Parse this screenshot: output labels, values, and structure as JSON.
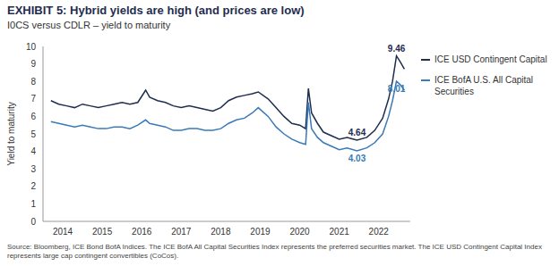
{
  "chart_data": {
    "type": "line",
    "title": "EXHIBIT 5: Hybrid yields are high (and prices are low)",
    "subtitle": "I0CS versus CDLR – yield to maturity",
    "y_label": "Yield to maturity",
    "source": "Source: Bloomberg, ICE Bond BofA Indices. The ICE BofA All Capital Securities Index represents the preferred securities market. The ICE USD Contingent Capital Index represents large cap contingent convertibles (CoCos).",
    "x": [
      2013.7,
      2013.9,
      2014.1,
      2014.3,
      2014.5,
      2014.7,
      2014.9,
      2015.1,
      2015.3,
      2015.5,
      2015.7,
      2015.9,
      2016.1,
      2016.2,
      2016.4,
      2016.6,
      2016.8,
      2017.0,
      2017.2,
      2017.4,
      2017.6,
      2017.8,
      2018.0,
      2018.2,
      2018.4,
      2018.6,
      2018.8,
      2018.95,
      2019.2,
      2019.4,
      2019.6,
      2019.8,
      2020.0,
      2020.15,
      2020.22,
      2020.3,
      2020.45,
      2020.6,
      2020.8,
      2021.0,
      2021.2,
      2021.45,
      2021.7,
      2021.9,
      2022.1,
      2022.25,
      2022.35,
      2022.45,
      2022.55,
      2022.65
    ],
    "series": [
      {
        "name": "ICE USD Contingent Capital",
        "color": "#1f2d4e",
        "values": [
          6.9,
          6.7,
          6.6,
          6.5,
          6.7,
          6.6,
          6.5,
          6.6,
          6.7,
          6.8,
          6.7,
          6.8,
          7.5,
          7.1,
          6.9,
          6.8,
          6.6,
          6.5,
          6.6,
          6.5,
          6.4,
          6.3,
          6.5,
          6.9,
          7.1,
          7.2,
          7.3,
          7.4,
          7.0,
          6.5,
          6.0,
          5.6,
          5.5,
          5.3,
          7.6,
          6.2,
          5.6,
          5.1,
          4.9,
          4.7,
          4.8,
          4.64,
          4.8,
          5.2,
          5.9,
          7.0,
          8.0,
          9.46,
          9.1,
          8.7
        ]
      },
      {
        "name": "ICE BofA U.S. All Capital Securities",
        "color": "#3a7ab8",
        "values": [
          5.7,
          5.6,
          5.5,
          5.4,
          5.5,
          5.4,
          5.3,
          5.3,
          5.4,
          5.4,
          5.3,
          5.5,
          5.8,
          5.6,
          5.5,
          5.4,
          5.2,
          5.2,
          5.3,
          5.3,
          5.2,
          5.2,
          5.3,
          5.6,
          5.8,
          5.9,
          6.2,
          6.5,
          6.0,
          5.4,
          5.0,
          4.7,
          4.5,
          4.4,
          6.8,
          5.3,
          4.8,
          4.5,
          4.3,
          4.1,
          4.2,
          4.03,
          4.2,
          4.5,
          5.0,
          6.0,
          6.9,
          8.01,
          7.8,
          7.5
        ]
      }
    ],
    "annotations": [
      {
        "label": "9.46",
        "x": 2022.45,
        "y": 9.46,
        "series": 0
      },
      {
        "label": "8.01",
        "x": 2022.45,
        "y": 8.01,
        "series": 1
      },
      {
        "label": "4.64",
        "x": 2021.45,
        "y": 4.64,
        "series": 0
      },
      {
        "label": "4.03",
        "x": 2021.45,
        "y": 4.03,
        "series": 1
      }
    ],
    "xlim": [
      2013.5,
      2022.8
    ],
    "xticks": [
      2014,
      2015,
      2016,
      2017,
      2018,
      2019,
      2020,
      2021,
      2022
    ],
    "ylim": [
      0,
      10
    ],
    "yticks": [
      0,
      1,
      2,
      3,
      4,
      5,
      6,
      7,
      8,
      9,
      10
    ],
    "grid": false,
    "legend": "right"
  }
}
